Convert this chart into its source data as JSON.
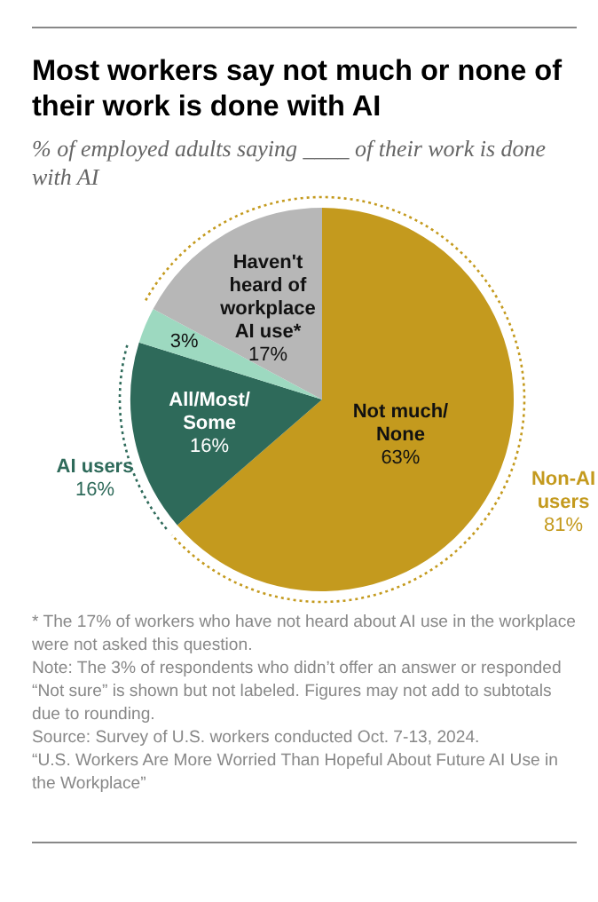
{
  "chart_data": {
    "type": "pie",
    "title": "Most workers say not much or none of their work is done with AI",
    "subtitle": "% of employed adults saying ____ of their work is done with AI",
    "categories": [
      "Not much/None",
      "All/Most/Some",
      null,
      "Haven't heard of workplace AI use*"
    ],
    "values": [
      63,
      16,
      3,
      17
    ],
    "colors": [
      "#c49a1e",
      "#2e6a5a",
      "#9dd9c0",
      "#b7b7b7"
    ],
    "value_labels": [
      "63%",
      "16%",
      "3%",
      "17%"
    ],
    "legend": false,
    "annotations": [
      "Non-AI users 81%",
      "AI users 16%",
      "* The 17% of workers who have not heard about AI use in the workplace were not asked this question.",
      "Note: The 3% of respondents who didn’t offer an answer or responded “Not sure” is shown but not labeled. Figures may not add to subtotals due to rounding.",
      "Source: Survey of U.S. workers conducted Oct. 7-13, 2024.",
      "“U.S. Workers Are More Worried Than Hopeful About Future AI Use in the Workplace”"
    ]
  }
}
